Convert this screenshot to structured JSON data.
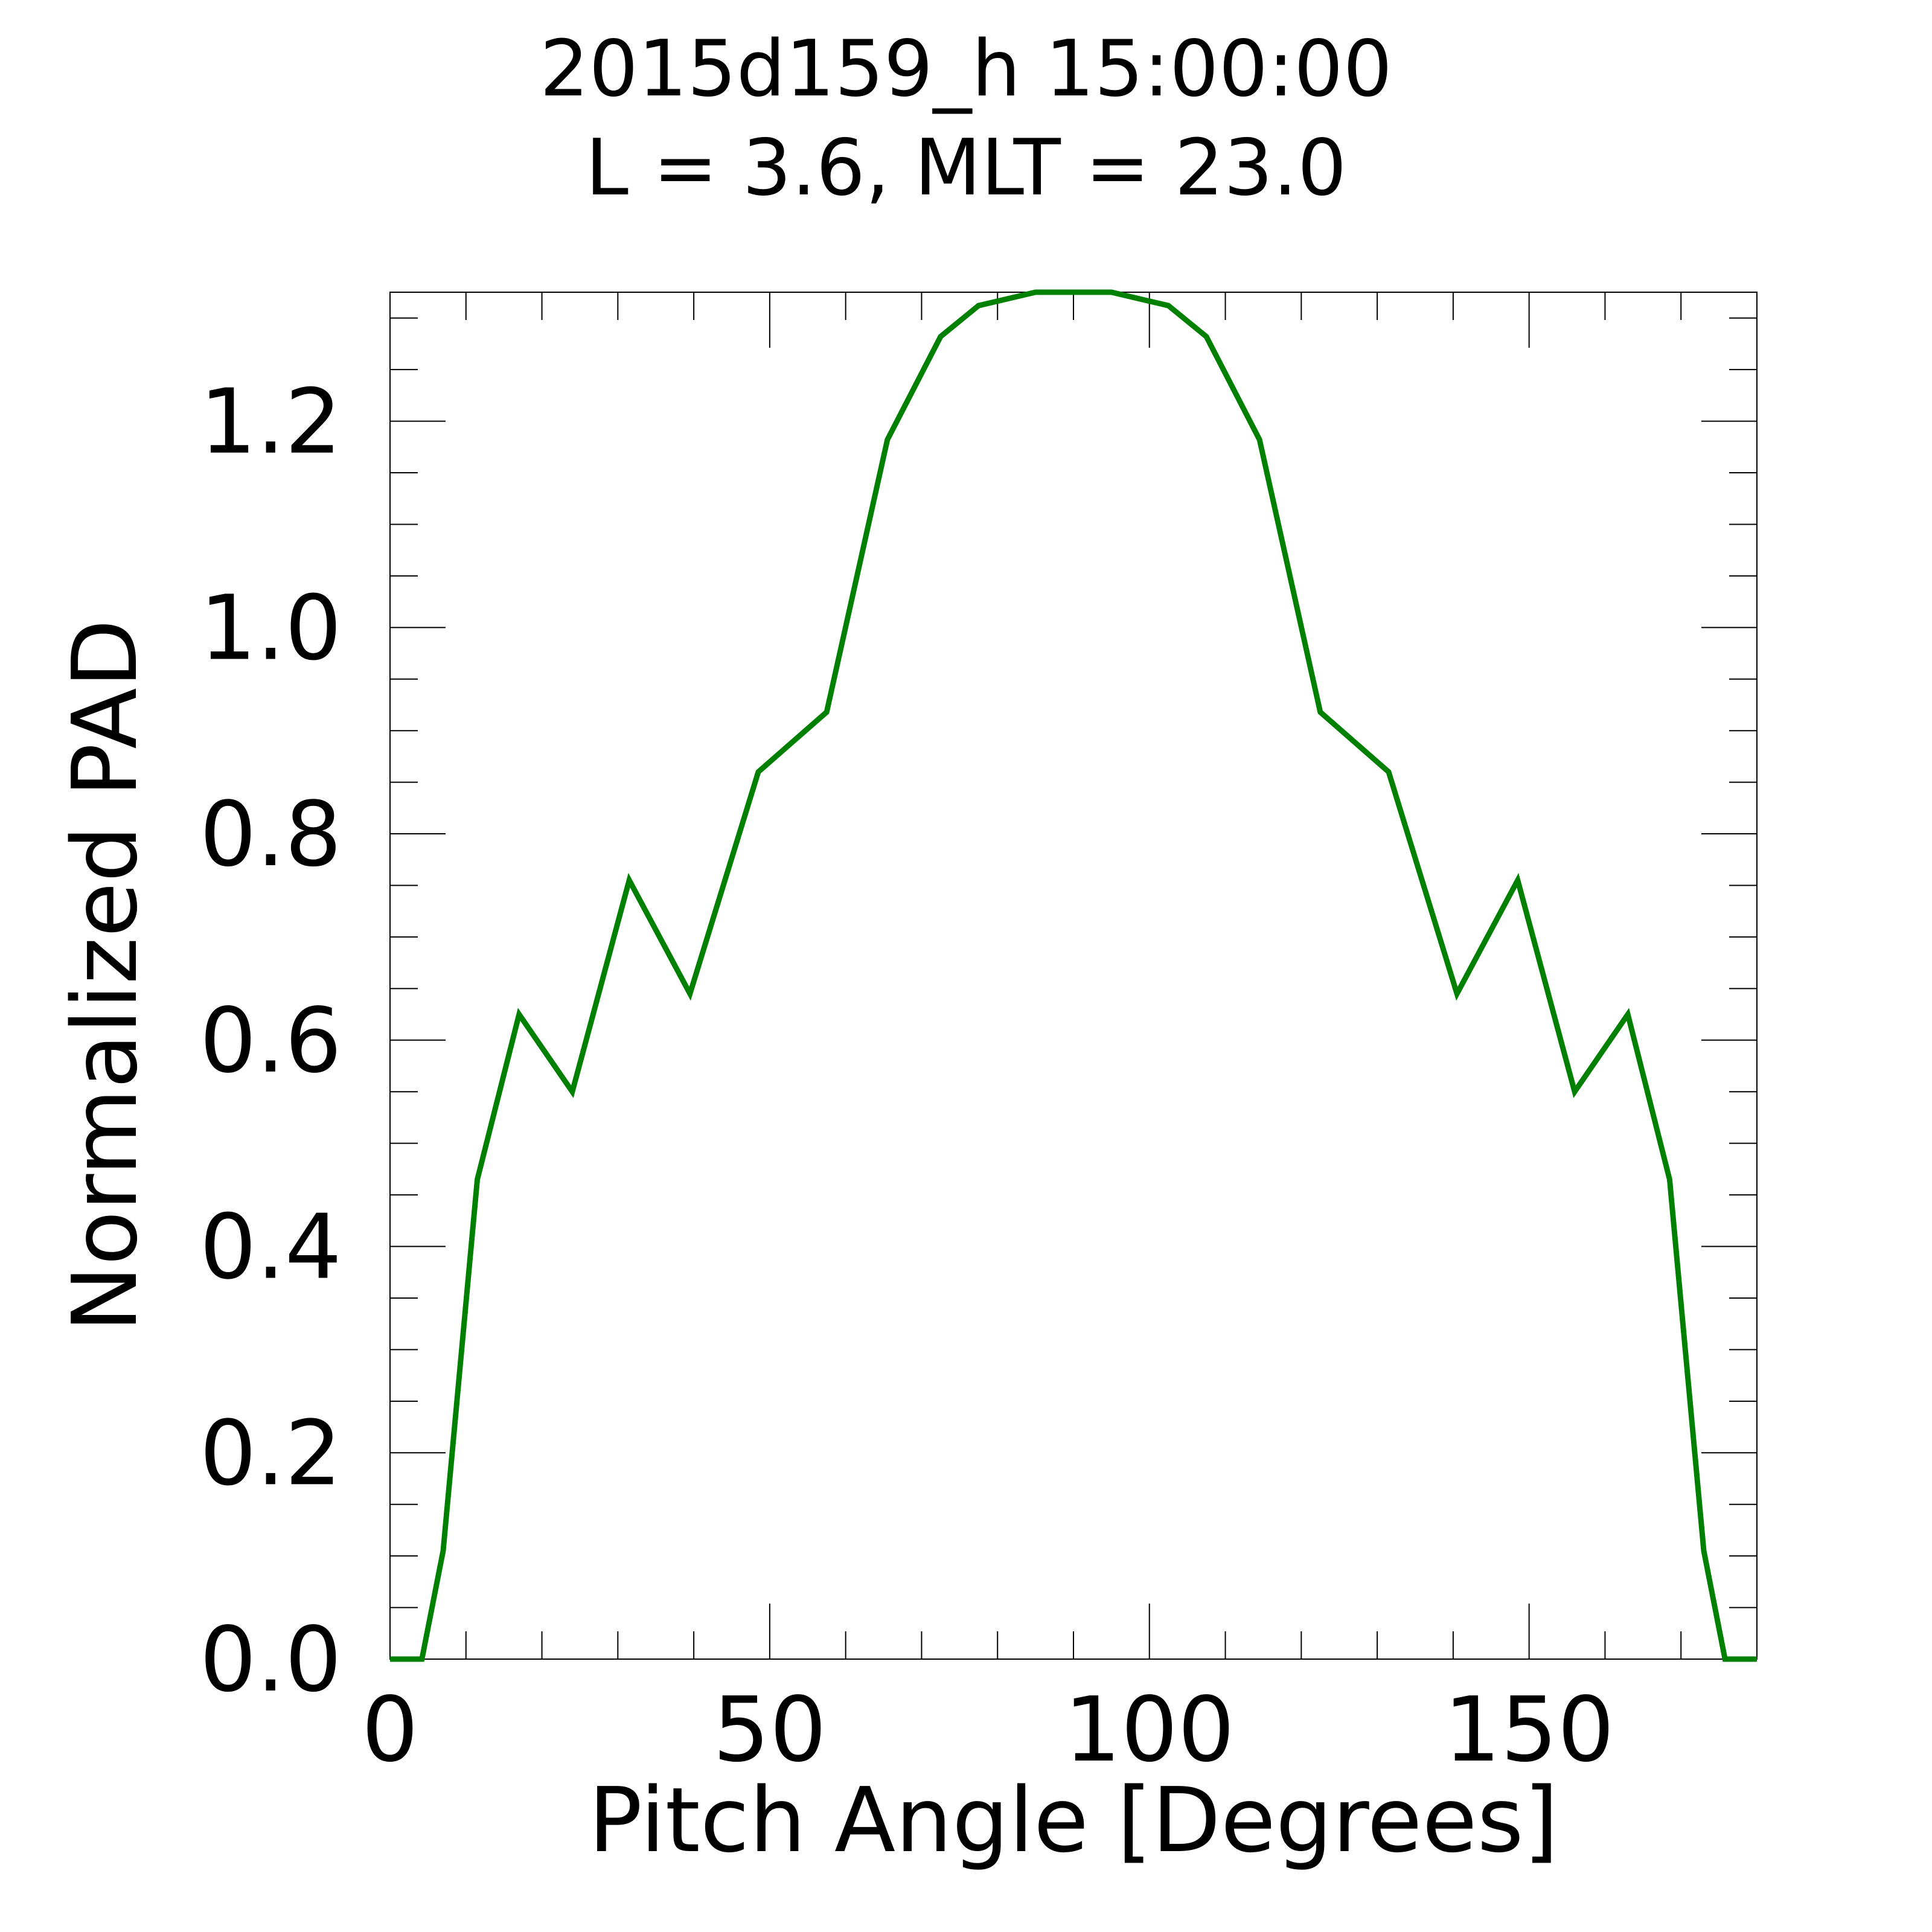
{
  "chart_data": {
    "type": "line",
    "title_lines": [
      "2015d159_h  15:00:00",
      "L = 3.6, MLT = 23.0"
    ],
    "xlabel": "Pitch Angle [Degrees]",
    "ylabel": "Normalized PAD",
    "xlim": [
      0,
      180
    ],
    "ylim": [
      0,
      1.325
    ],
    "x_ticks": [
      0,
      50,
      100,
      150
    ],
    "x_tick_labels": [
      "0",
      "50",
      "100",
      "150"
    ],
    "x_minor_step": 10,
    "y_ticks": [
      0.0,
      0.2,
      0.4,
      0.6,
      0.8,
      1.0,
      1.2
    ],
    "y_tick_labels": [
      "0.0",
      "0.2",
      "0.4",
      "0.6",
      "0.8",
      "1.0",
      "1.2"
    ],
    "y_minor_step": 0.05,
    "grid": false,
    "series": [
      {
        "color": "#008000",
        "x": [
          0,
          4.2,
          7.0,
          11.5,
          17.0,
          24.0,
          31.5,
          39.5,
          48.5,
          57.5,
          65.5,
          72.5,
          77.5,
          85.0,
          95.0,
          102.5,
          107.5,
          114.5,
          122.5,
          131.5,
          140.5,
          148.5,
          156.0,
          163.0,
          168.5,
          173.0,
          175.8,
          180
        ],
        "y": [
          0,
          0,
          0.105,
          0.465,
          0.625,
          0.55,
          0.755,
          0.645,
          0.86,
          0.918,
          1.182,
          1.282,
          1.312,
          1.325,
          1.325,
          1.312,
          1.282,
          1.182,
          0.918,
          0.86,
          0.645,
          0.755,
          0.55,
          0.625,
          0.465,
          0.105,
          0,
          0
        ]
      }
    ]
  }
}
